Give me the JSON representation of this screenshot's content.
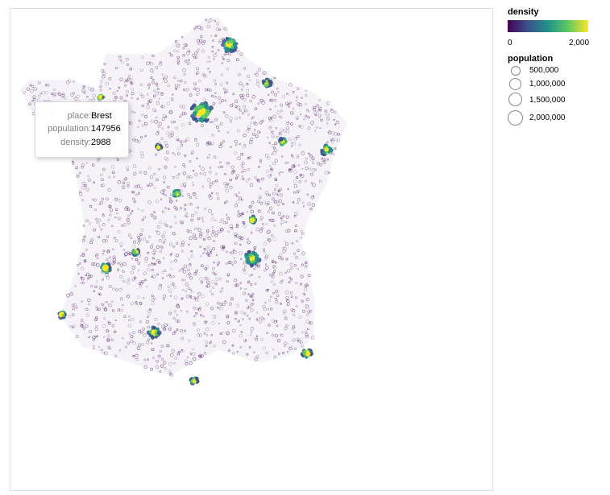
{
  "chart_data": {
    "type": "scatter",
    "map": "France",
    "marks": "circles sized by population and colored by density (viridis)",
    "legends": {
      "density": {
        "title": "density",
        "min_label": "0",
        "max_label": "2,000",
        "domain": [
          0,
          2000
        ],
        "colors": [
          "#440154",
          "#3b528b",
          "#21918c",
          "#5ec962",
          "#fde725"
        ]
      },
      "population": {
        "title": "population",
        "entries": [
          {
            "value": 500000,
            "label": "500,000"
          },
          {
            "value": 1000000,
            "label": "1,000,000"
          },
          {
            "value": 1500000,
            "label": "1,500,000"
          },
          {
            "value": 2000000,
            "label": "2,000,000"
          }
        ]
      }
    },
    "tooltip": {
      "rows": [
        {
          "key": "place:",
          "value": "Brest"
        },
        {
          "key": "population:",
          "value": "147956"
        },
        {
          "key": "density:",
          "value": "2988"
        }
      ]
    }
  }
}
